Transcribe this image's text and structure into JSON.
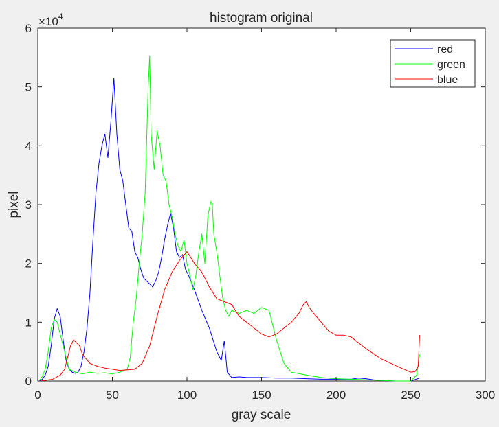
{
  "chart_data": {
    "type": "line",
    "title": "histogram original",
    "xlabel": "gray scale",
    "ylabel": "pixel",
    "xlim": [
      0,
      300
    ],
    "ylim": [
      0,
      60000
    ],
    "y_exponent_label": "×10",
    "y_exponent_power": "4",
    "xticks": [
      0,
      50,
      100,
      150,
      200,
      250,
      300
    ],
    "xtick_labels": [
      "0",
      "50",
      "100",
      "150",
      "200",
      "250",
      "300"
    ],
    "yticks": [
      0,
      10000,
      20000,
      30000,
      40000,
      50000,
      60000
    ],
    "ytick_labels": [
      "0",
      "1",
      "2",
      "3",
      "4",
      "5",
      "6"
    ],
    "grid": false,
    "legend_position": "top-right",
    "series": [
      {
        "name": "red",
        "color": "#0000ff",
        "x": [
          1,
          3,
          5,
          7,
          9,
          11,
          13,
          15,
          17,
          19,
          21,
          23,
          25,
          27,
          29,
          31,
          33,
          35,
          37,
          39,
          41,
          43,
          45,
          47,
          49,
          51,
          53,
          55,
          57,
          59,
          61,
          63,
          65,
          67,
          69,
          71,
          73,
          75,
          77,
          79,
          81,
          83,
          85,
          87,
          89,
          91,
          93,
          95,
          97,
          99,
          101,
          105,
          110,
          115,
          120,
          123,
          125,
          127,
          130,
          135,
          140,
          150,
          160,
          170,
          180,
          190,
          200,
          210,
          215,
          220,
          225,
          230,
          240,
          250,
          256
        ],
        "y": [
          0,
          300,
          1000,
          2500,
          6000,
          10500,
          12300,
          11000,
          7000,
          3500,
          2000,
          1500,
          1300,
          1500,
          2500,
          5000,
          9000,
          15000,
          24000,
          32000,
          37000,
          40000,
          42000,
          38000,
          44000,
          51500,
          42000,
          36000,
          34000,
          30000,
          26000,
          25500,
          22000,
          21000,
          19000,
          17500,
          17000,
          16500,
          16000,
          17000,
          18500,
          21000,
          24000,
          26500,
          28500,
          26000,
          22000,
          21000,
          21500,
          19000,
          18000,
          15500,
          12000,
          9000,
          5000,
          3500,
          6800,
          1500,
          600,
          700,
          600,
          600,
          500,
          500,
          400,
          300,
          300,
          300,
          500,
          400,
          200,
          100,
          0,
          0,
          500
        ]
      },
      {
        "name": "green",
        "color": "#00ff00",
        "x": [
          1,
          3,
          5,
          7,
          9,
          11,
          13,
          15,
          17,
          19,
          21,
          25,
          30,
          35,
          40,
          45,
          50,
          55,
          60,
          62,
          64,
          66,
          68,
          70,
          72,
          74,
          75,
          76,
          78,
          80,
          82,
          84,
          86,
          88,
          90,
          92,
          94,
          96,
          98,
          100,
          102,
          104,
          106,
          108,
          110,
          112,
          114,
          116,
          117,
          118,
          120,
          122,
          124,
          126,
          128,
          130,
          135,
          140,
          145,
          150,
          155,
          160,
          165,
          170,
          180,
          190,
          200,
          210,
          220,
          230,
          240,
          250,
          254,
          256
        ],
        "y": [
          0,
          800,
          2000,
          5000,
          9000,
          10500,
          10000,
          8000,
          6000,
          4000,
          2000,
          1500,
          1200,
          1500,
          1300,
          1400,
          1200,
          1500,
          2000,
          4000,
          10000,
          14000,
          20000,
          25000,
          32000,
          50000,
          55300,
          42000,
          36000,
          42500,
          40000,
          35000,
          34000,
          30000,
          28000,
          25000,
          23000,
          22000,
          24000,
          20000,
          18000,
          15500,
          18000,
          22000,
          25000,
          20000,
          28000,
          30500,
          30000,
          25000,
          22000,
          18000,
          14000,
          12000,
          11000,
          12000,
          11500,
          12000,
          11500,
          12500,
          12000,
          7000,
          3000,
          1500,
          1000,
          600,
          400,
          300,
          200,
          100,
          0,
          0,
          1000,
          4500
        ]
      },
      {
        "name": "blue",
        "color": "#ff0000",
        "x": [
          1,
          5,
          10,
          15,
          18,
          20,
          22,
          24,
          26,
          28,
          30,
          35,
          40,
          45,
          50,
          55,
          60,
          65,
          70,
          75,
          80,
          85,
          90,
          95,
          100,
          105,
          110,
          115,
          120,
          125,
          130,
          135,
          140,
          145,
          150,
          155,
          160,
          165,
          170,
          175,
          178,
          180,
          182,
          185,
          190,
          195,
          200,
          205,
          210,
          215,
          220,
          230,
          240,
          250,
          253,
          255,
          256
        ],
        "y": [
          0,
          100,
          300,
          1000,
          2000,
          4000,
          6000,
          7000,
          6500,
          6000,
          4500,
          3000,
          2500,
          2200,
          2000,
          1800,
          1900,
          2000,
          3000,
          6000,
          11000,
          15500,
          18500,
          20500,
          22000,
          20000,
          18500,
          16000,
          14000,
          13500,
          13000,
          11000,
          10000,
          9000,
          8000,
          7500,
          8000,
          9000,
          10000,
          11500,
          13000,
          13500,
          12500,
          11500,
          10000,
          8500,
          7800,
          7800,
          7500,
          6500,
          5500,
          3800,
          2600,
          1500,
          1600,
          2500,
          7800
        ]
      }
    ]
  }
}
